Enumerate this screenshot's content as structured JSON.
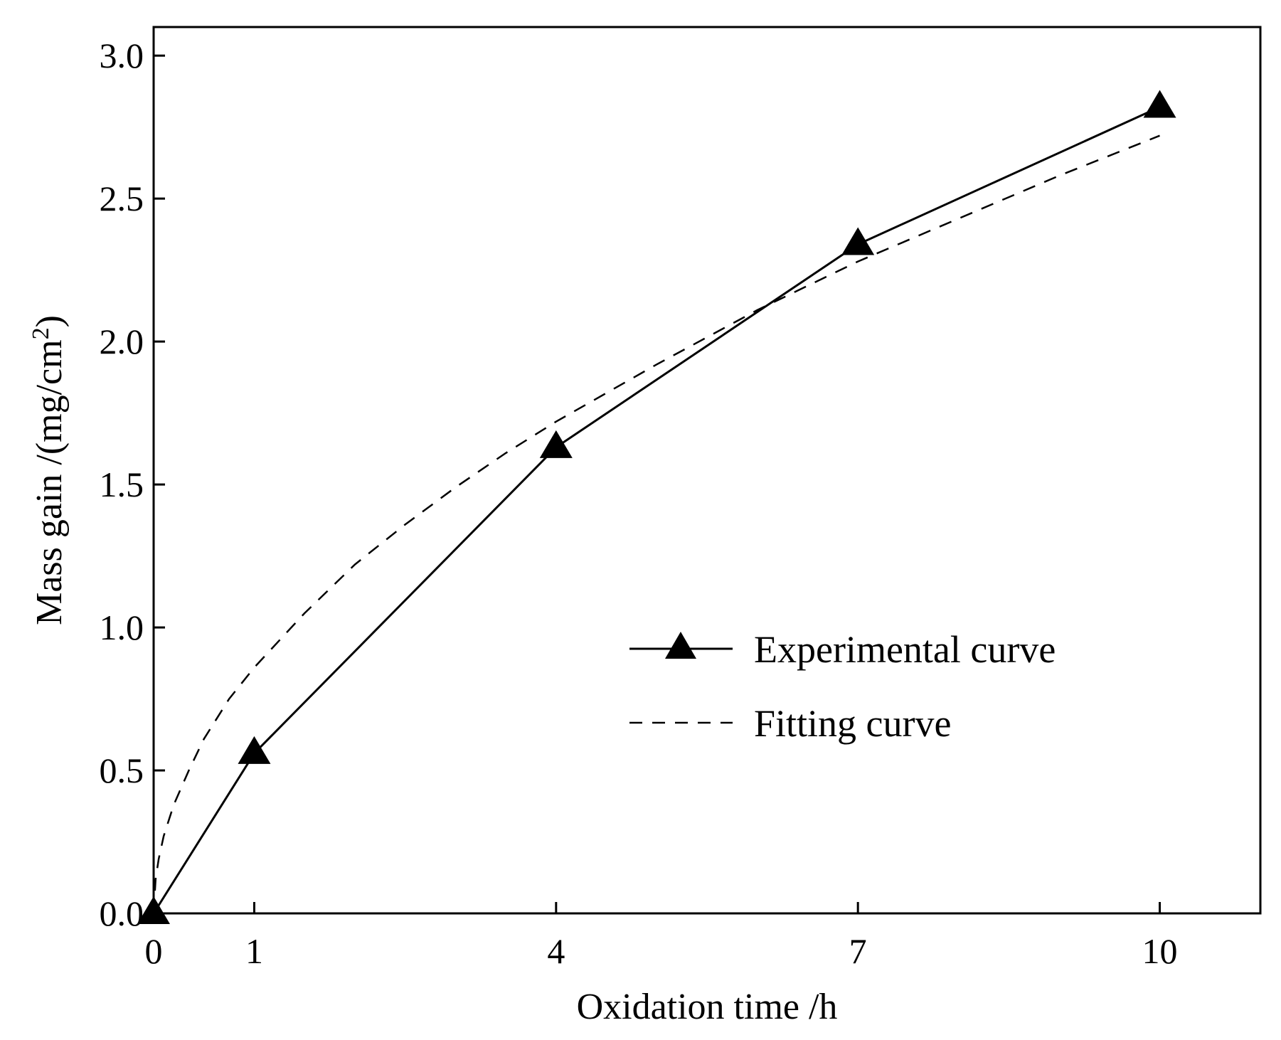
{
  "chart_data": {
    "type": "line",
    "xlabel": "Oxidation time /h",
    "ylabel_main": "Mass gain /(mg/cm",
    "ylabel_sup": "2",
    "ylabel_close": ")",
    "xlim": [
      0,
      11
    ],
    "ylim": [
      0,
      3.1
    ],
    "xticks": [
      0,
      1,
      4,
      7,
      10
    ],
    "xtick_labels": [
      "0",
      "1",
      "4",
      "7",
      "10"
    ],
    "yticks": [
      0,
      0.5,
      1.0,
      1.5,
      2.0,
      2.5,
      3.0
    ],
    "ytick_labels": [
      "0.0",
      "0.5",
      "1.0",
      "1.5",
      "2.0",
      "2.5",
      "3.0"
    ],
    "series": [
      {
        "name": "Experimental curve",
        "style": "solid",
        "marker": "triangle",
        "x": [
          0,
          1,
          4,
          7,
          10
        ],
        "y": [
          0.0,
          0.56,
          1.63,
          2.34,
          2.82
        ]
      },
      {
        "name": "Fitting curve",
        "style": "dashed",
        "marker": "none",
        "x": [
          0,
          0.02,
          0.05,
          0.1,
          0.2,
          0.35,
          0.5,
          0.75,
          1,
          1.5,
          2,
          2.5,
          3,
          3.5,
          4,
          5,
          6,
          7,
          8,
          9,
          10
        ],
        "y": [
          0.0,
          0.12,
          0.19,
          0.27,
          0.38,
          0.5,
          0.61,
          0.75,
          0.86,
          1.05,
          1.22,
          1.36,
          1.49,
          1.61,
          1.72,
          1.92,
          2.11,
          2.28,
          2.43,
          2.58,
          2.72
        ]
      }
    ],
    "legend": {
      "position": "center-right",
      "entries": [
        "Experimental curve",
        "Fitting curve"
      ]
    },
    "colors": {
      "line": "#000000",
      "background": "#ffffff"
    }
  }
}
